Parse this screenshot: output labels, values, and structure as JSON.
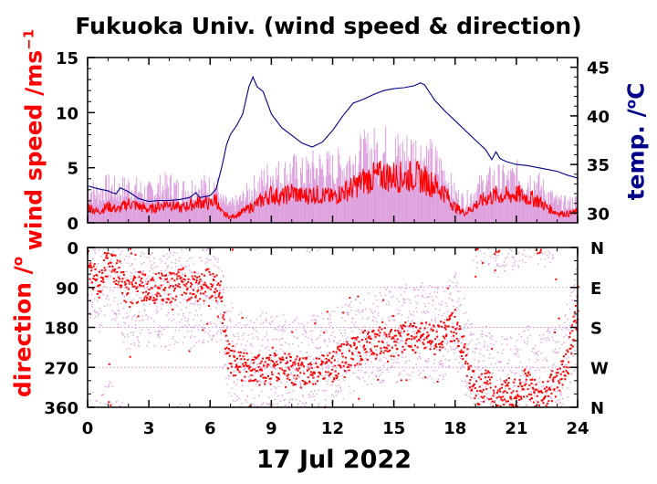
{
  "title": "Fukuoka Univ. (wind speed & direction)",
  "date_label": "17 Jul 2022",
  "labels": {
    "wind_speed_main": "wind speed /ms",
    "wind_speed_sup": "−1",
    "direction_main": "direction /",
    "direction_sup": "o",
    "temp_main": "temp. /",
    "temp_sup": "o",
    "temp_unit": "C"
  },
  "colors": {
    "wind_speed": "#ff0000",
    "wind_gust": "#dda0dd",
    "temperature": "#00008b",
    "axis": "#000000"
  },
  "chart_data": [
    {
      "type": "line",
      "panel": "wind-speed-and-temperature",
      "xlim": [
        0,
        24
      ],
      "xticks": [
        0,
        3,
        6,
        9,
        12,
        15,
        18,
        21,
        24
      ],
      "ylim_left": [
        0,
        15
      ],
      "yticks_left": [
        0,
        5,
        10,
        15
      ],
      "ylim_right": [
        29,
        46
      ],
      "yticks_right": [
        30,
        35,
        40,
        45
      ],
      "series": [
        {
          "axis": "left",
          "style": "line-mean",
          "x": [
            0,
            0.5,
            1,
            1.5,
            2,
            2.5,
            3,
            3.5,
            4,
            4.5,
            5,
            5.5,
            6,
            6.3,
            6.5,
            7,
            7.5,
            8,
            8.5,
            9,
            9.5,
            10,
            10.5,
            11,
            11.5,
            12,
            12.5,
            13,
            13.5,
            14,
            14.5,
            15,
            15.5,
            16,
            16.5,
            17,
            17.5,
            18,
            18.5,
            19,
            19.5,
            20,
            20.5,
            21,
            21.5,
            22,
            22.5,
            23,
            23.5,
            24
          ],
          "values": [
            1.5,
            1.0,
            1.5,
            1.2,
            1.8,
            1.5,
            1.2,
            1.5,
            1.8,
            1.3,
            1.6,
            1.9,
            1.7,
            2.2,
            1.0,
            0.5,
            0.9,
            1.4,
            2.0,
            2.6,
            2.3,
            2.8,
            2.4,
            2.6,
            2.5,
            2.3,
            2.8,
            3.2,
            3.8,
            4.1,
            4.3,
            4.2,
            4.1,
            4.3,
            3.9,
            3.4,
            2.7,
            1.4,
            0.9,
            1.6,
            2.2,
            2.5,
            2.4,
            2.6,
            2.3,
            2.1,
            1.4,
            0.9,
            0.8,
            1.0
          ]
        },
        {
          "axis": "left",
          "style": "gust-envelope",
          "x": [
            0,
            0.5,
            1,
            1.5,
            2,
            2.5,
            3,
            3.5,
            4,
            4.5,
            5,
            5.5,
            6,
            6.3,
            6.5,
            7,
            7.5,
            8,
            8.5,
            9,
            9.5,
            10,
            10.5,
            11,
            11.5,
            12,
            12.5,
            13,
            13.5,
            14,
            14.5,
            15,
            15.5,
            16,
            16.5,
            17,
            17.5,
            18,
            18.5,
            19,
            19.5,
            20,
            20.5,
            21,
            21.5,
            22,
            22.5,
            23,
            23.5,
            24
          ],
          "values": [
            3.6,
            3.2,
            3.8,
            3.4,
            3.9,
            3.5,
            3.2,
            3.7,
            4.0,
            3.4,
            3.6,
            3.9,
            3.7,
            4.2,
            2.4,
            1.8,
            2.4,
            3.4,
            4.2,
            5.2,
            4.8,
            5.5,
            5.0,
            5.6,
            5.8,
            5.5,
            6.0,
            6.6,
            7.0,
            7.4,
            7.6,
            7.3,
            7.1,
            7.4,
            6.9,
            6.2,
            5.1,
            3.0,
            2.3,
            3.4,
            4.2,
            4.6,
            4.4,
            4.8,
            4.6,
            4.2,
            3.1,
            2.2,
            2.0,
            2.3
          ]
        },
        {
          "axis": "right",
          "style": "line",
          "x": [
            0,
            0.5,
            1,
            1.2,
            1.4,
            1.6,
            2,
            2.5,
            3,
            3.5,
            4,
            4.5,
            5,
            5.3,
            5.5,
            6,
            6.3,
            6.6,
            6.8,
            7,
            7.3,
            7.6,
            7.9,
            8.1,
            8.3,
            8.6,
            9,
            9.5,
            10,
            10.5,
            11,
            11.5,
            12,
            12.5,
            13,
            13.5,
            14,
            14.5,
            15,
            15.5,
            16,
            16.3,
            16.5,
            17,
            17.5,
            18,
            18.5,
            19,
            19.5,
            19.8,
            20,
            20.2,
            20.5,
            21,
            21.5,
            22,
            22.5,
            23,
            23.5,
            24
          ],
          "values": [
            32.8,
            32.5,
            32.3,
            32.1,
            32.0,
            32.6,
            32.2,
            31.5,
            31.2,
            31.3,
            31.3,
            31.4,
            31.6,
            32.1,
            31.6,
            31.8,
            32.5,
            35.0,
            37.0,
            38.1,
            39.0,
            40.2,
            43.0,
            44.0,
            43.0,
            42.5,
            40.2,
            38.8,
            38.0,
            37.2,
            36.8,
            37.3,
            38.5,
            40.0,
            41.3,
            41.7,
            42.2,
            42.6,
            42.8,
            42.9,
            43.1,
            43.4,
            43.2,
            41.6,
            40.5,
            39.5,
            38.5,
            37.5,
            36.5,
            35.5,
            36.3,
            35.6,
            35.3,
            35.0,
            34.9,
            34.7,
            34.5,
            34.3,
            33.9,
            33.6
          ]
        }
      ]
    },
    {
      "type": "scatter",
      "panel": "wind-direction",
      "xlim": [
        0,
        24
      ],
      "xticks": [
        0,
        3,
        6,
        9,
        12,
        15,
        18,
        21,
        24
      ],
      "xtick_labels": [
        "0",
        "3",
        "6",
        "9",
        "12",
        "15",
        "18",
        "21",
        "24"
      ],
      "ylim": [
        360,
        0
      ],
      "yticks": [
        0,
        90,
        180,
        270,
        360
      ],
      "ytick_labels_right": [
        "N",
        "E",
        "S",
        "W",
        "N"
      ],
      "series": [
        {
          "style": "mean-direction",
          "x": [
            0,
            0.5,
            1,
            1.5,
            2,
            2.5,
            3,
            3.5,
            4,
            4.5,
            5,
            5.5,
            6,
            6.3,
            6.5,
            6.8,
            7,
            7.5,
            8,
            8.5,
            9,
            9.5,
            10,
            10.5,
            11,
            11.5,
            12,
            12.5,
            13,
            13.5,
            14,
            14.5,
            15,
            15.5,
            16,
            16.5,
            17,
            17.5,
            18,
            18.5,
            19,
            19.5,
            20,
            20.5,
            21,
            21.5,
            22,
            22.5,
            23,
            23.5,
            24
          ],
          "values": [
            40,
            80,
            20,
            60,
            110,
            85,
            95,
            90,
            88,
            75,
            90,
            85,
            80,
            95,
            110,
            240,
            250,
            265,
            270,
            275,
            270,
            265,
            275,
            280,
            275,
            270,
            265,
            245,
            235,
            220,
            215,
            205,
            210,
            200,
            200,
            195,
            205,
            190,
            170,
            250,
            330,
            300,
            350,
            320,
            330,
            300,
            340,
            320,
            300,
            250,
            120
          ]
        },
        {
          "style": "scatter-cloud",
          "x": [
            0,
            0.5,
            1,
            1.5,
            2,
            2.5,
            3,
            3.5,
            4,
            4.5,
            5,
            5.5,
            6,
            6.3,
            6.5,
            6.8,
            7,
            7.5,
            8,
            8.5,
            9,
            9.5,
            10,
            10.5,
            11,
            11.5,
            12,
            12.5,
            13,
            13.5,
            14,
            14.5,
            15,
            15.5,
            16,
            16.5,
            17,
            17.5,
            18,
            18.5,
            19,
            19.5,
            20,
            20.5,
            21,
            21.5,
            22,
            22.5,
            23,
            23.5,
            24
          ],
          "values": [
            60,
            90,
            40,
            80,
            130,
            120,
            110,
            130,
            120,
            100,
            120,
            110,
            100,
            110,
            140,
            220,
            230,
            250,
            260,
            255,
            250,
            255,
            260,
            265,
            260,
            255,
            250,
            230,
            220,
            210,
            200,
            195,
            200,
            190,
            190,
            185,
            195,
            185,
            165,
            230,
            300,
            280,
            320,
            300,
            300,
            280,
            310,
            290,
            270,
            230,
            140
          ]
        }
      ]
    }
  ]
}
